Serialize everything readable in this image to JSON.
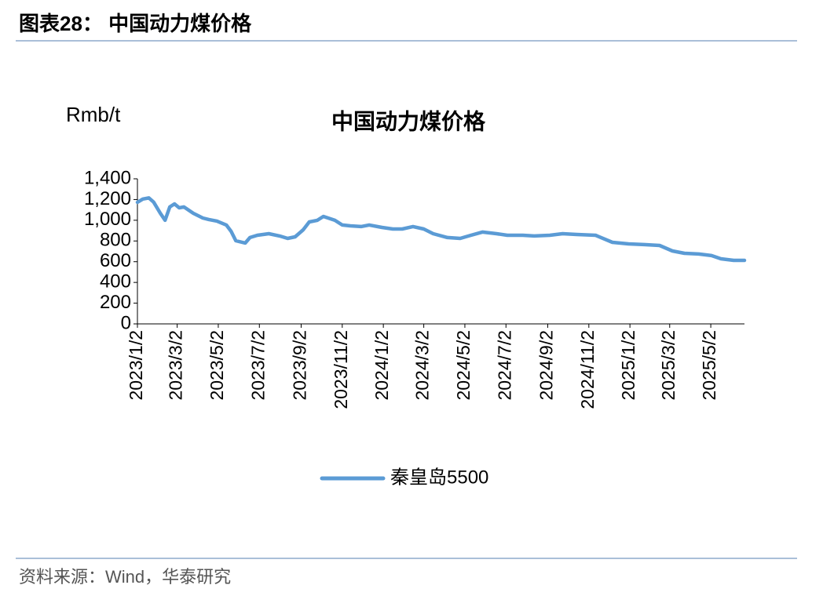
{
  "header": {
    "title": "图表28：  中国动力煤价格"
  },
  "chart_data": {
    "type": "line",
    "title": "中国动力煤价格",
    "y_label": "Rmb/t",
    "x": [
      "2023/1/2",
      "2023/1/10",
      "2023/1/19",
      "2023/1/26",
      "2023/2/5",
      "2023/2/12",
      "2023/2/19",
      "2023/2/26",
      "2023/3/5",
      "2023/3/12",
      "2023/3/26",
      "2023/4/9",
      "2023/4/18",
      "2023/4/30",
      "2023/5/14",
      "2023/5/21",
      "2023/5/28",
      "2023/6/11",
      "2023/6/18",
      "2023/6/29",
      "2023/7/16",
      "2023/8/1",
      "2023/8/13",
      "2023/8/24",
      "2023/9/5",
      "2023/9/14",
      "2023/9/26",
      "2023/10/5",
      "2023/10/22",
      "2023/11/2",
      "2023/11/14",
      "2023/11/30",
      "2023/12/12",
      "2023/12/31",
      "2024/1/16",
      "2024/1/30",
      "2024/2/15",
      "2024/3/2",
      "2024/3/16",
      "2024/4/6",
      "2024/4/25",
      "2024/5/11",
      "2024/5/28",
      "2024/6/18",
      "2024/7/4",
      "2024/7/27",
      "2024/8/13",
      "2024/9/5",
      "2024/9/24",
      "2024/10/15",
      "2024/11/12",
      "2024/12/7",
      "2024/12/31",
      "2025/1/23",
      "2025/2/15",
      "2025/3/6",
      "2025/3/24",
      "2025/4/14",
      "2025/5/3",
      "2025/5/17",
      "2025/6/5",
      "2025/6/21"
    ],
    "series": [
      {
        "name": "秦皇岛5500",
        "color": "#5b9bd5",
        "values": [
          1173,
          1205,
          1215,
          1175,
          1067,
          1000,
          1128,
          1158,
          1120,
          1128,
          1067,
          1022,
          1007,
          992,
          954,
          893,
          802,
          780,
          833,
          855,
          870,
          848,
          825,
          840,
          908,
          984,
          1000,
          1037,
          1000,
          954,
          946,
          939,
          954,
          931,
          916,
          916,
          939,
          916,
          870,
          833,
          825,
          855,
          886,
          870,
          855,
          855,
          848,
          855,
          870,
          863,
          855,
          787,
          772,
          765,
          757,
          704,
          681,
          674,
          659,
          628,
          613,
          613
        ]
      }
    ],
    "xlim": [
      "2023/1/2",
      "2025/6/21"
    ],
    "xticks": [
      "2023/1/2",
      "2023/3/2",
      "2023/5/2",
      "2023/7/2",
      "2023/9/2",
      "2023/11/2",
      "2024/1/2",
      "2024/3/2",
      "2024/5/2",
      "2024/7/2",
      "2024/9/2",
      "2024/11/2",
      "2025/1/2",
      "2025/3/2",
      "2025/5/2"
    ],
    "ylim": [
      0,
      1400
    ],
    "yticks": [
      0,
      200,
      400,
      600,
      800,
      {
        "value": 1000,
        "label": "1,000"
      },
      {
        "value": 1200,
        "label": "1,200"
      },
      {
        "value": 1400,
        "label": "1,400"
      }
    ],
    "grid": false
  },
  "footer": {
    "source": "资料来源：Wind，华泰研究"
  }
}
